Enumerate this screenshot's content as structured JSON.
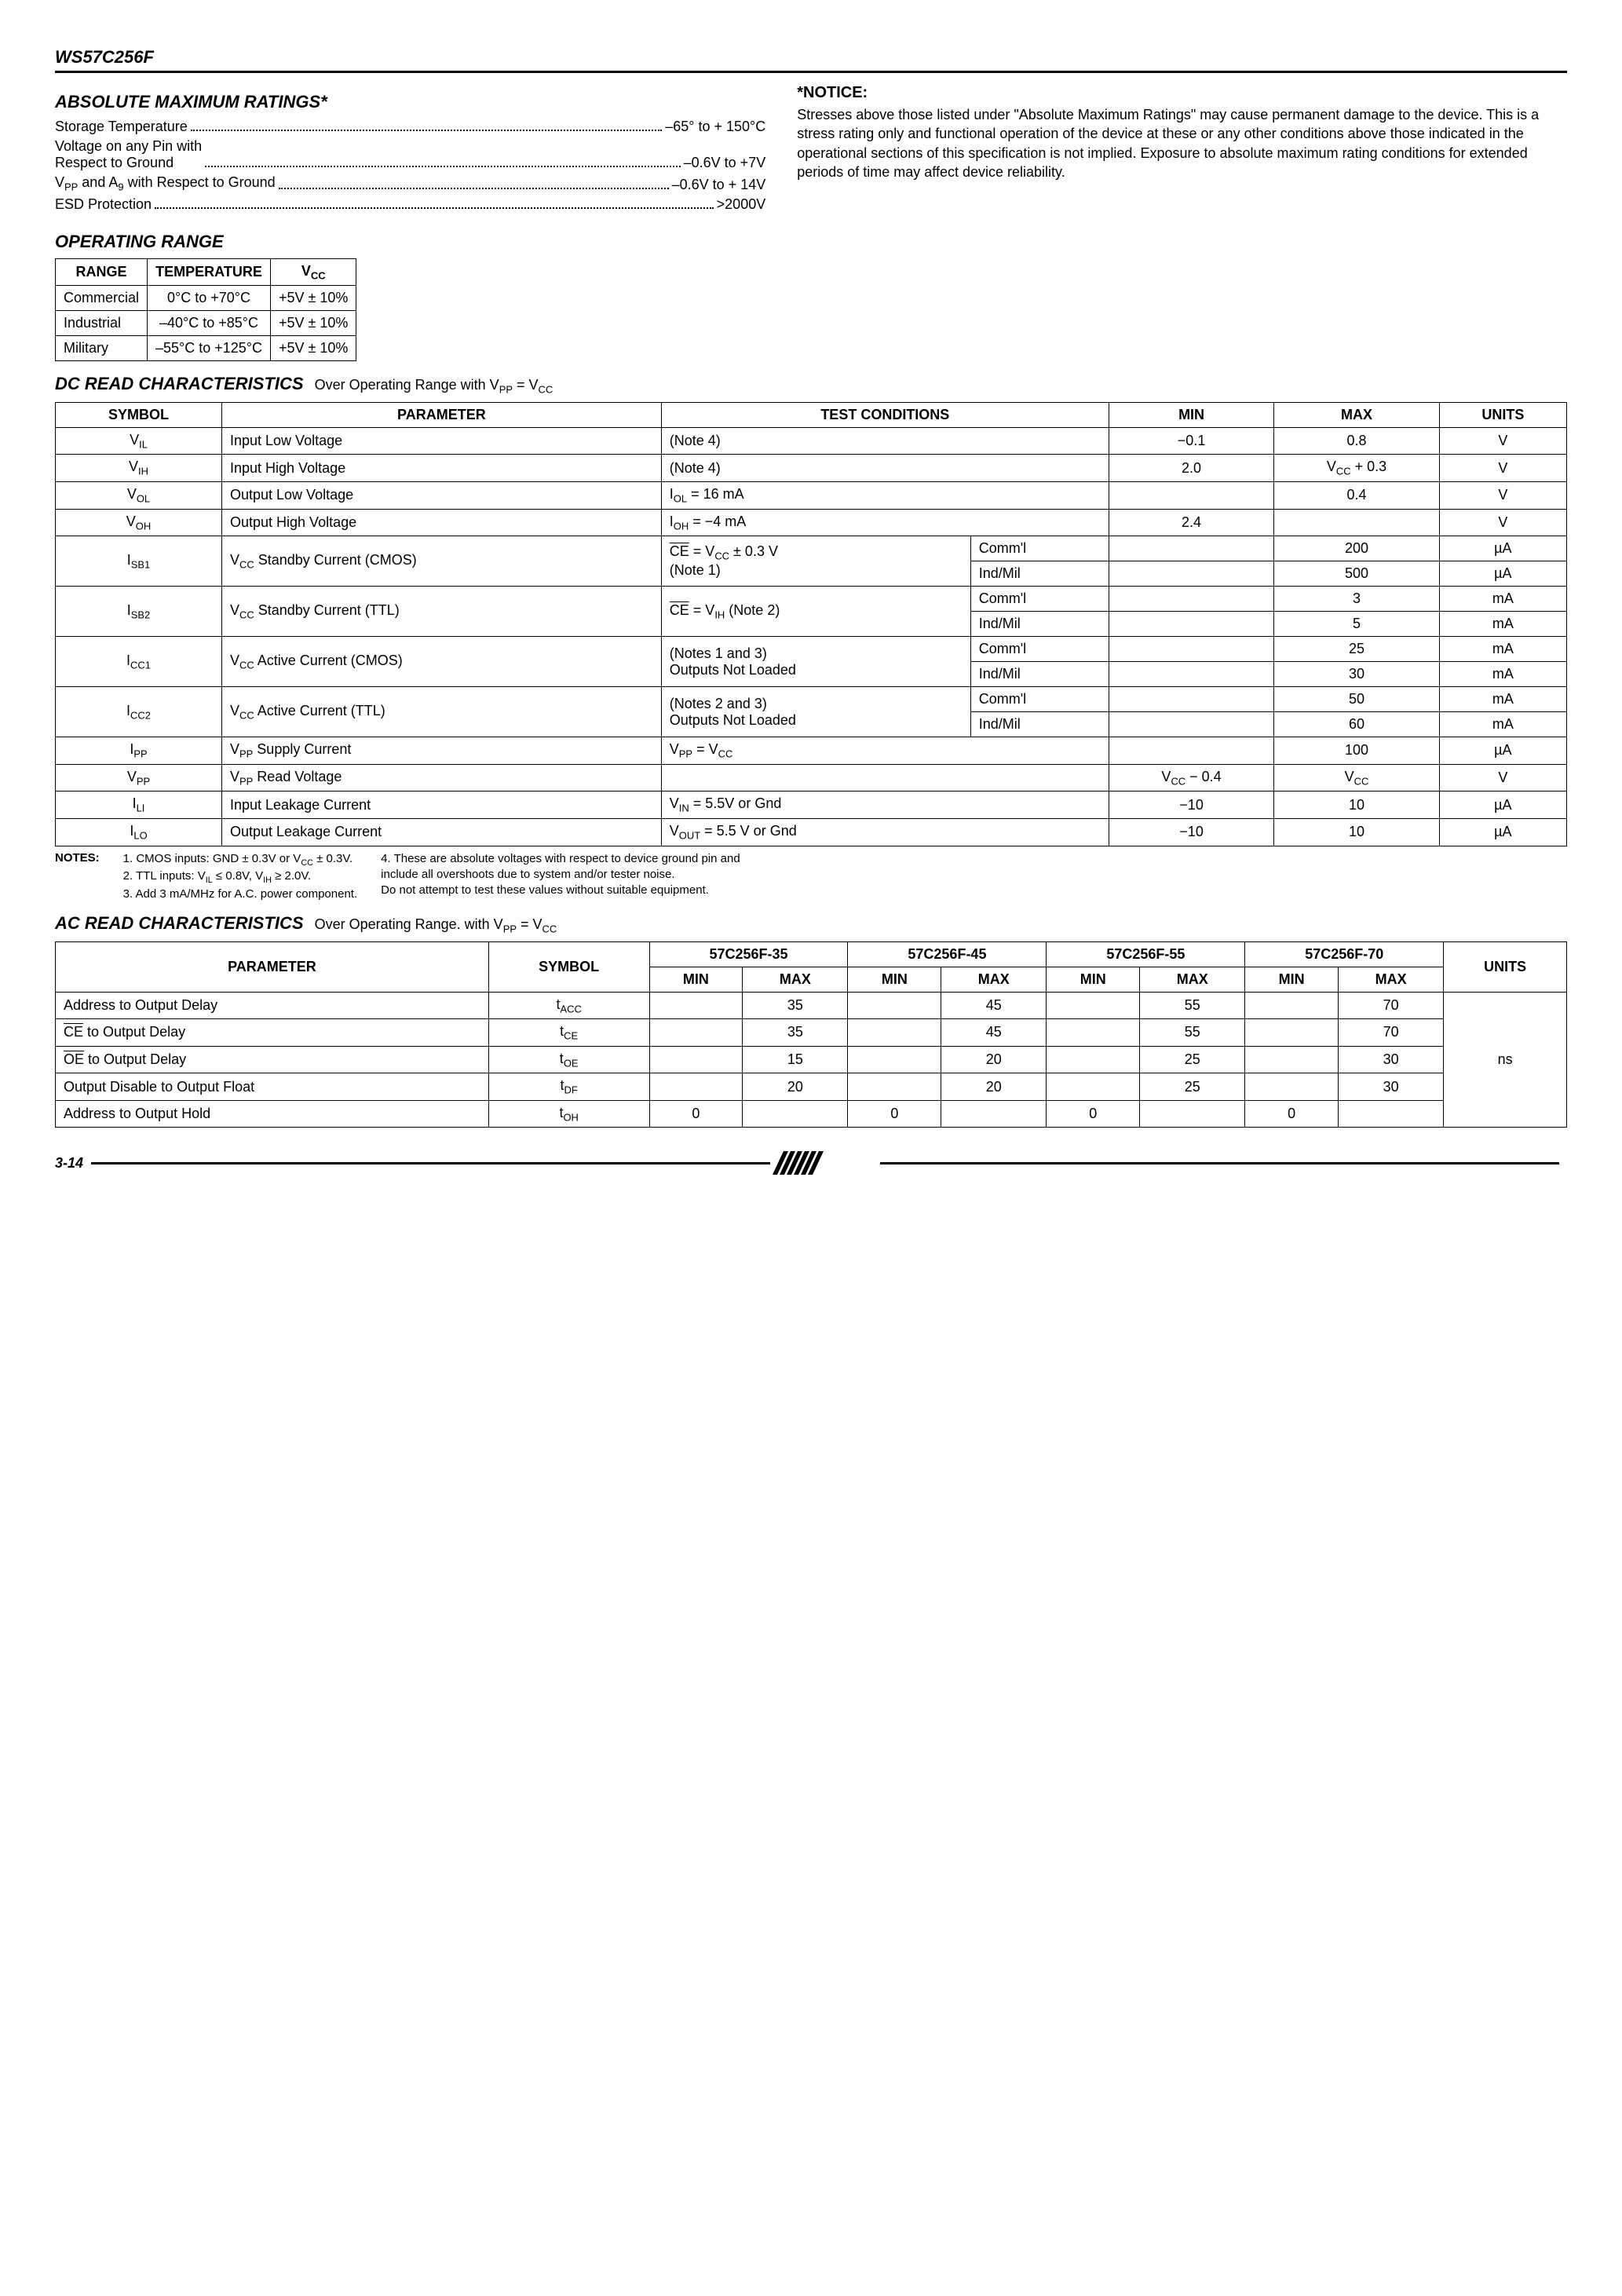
{
  "header": {
    "part_no": "WS57C256F"
  },
  "amr": {
    "title": "ABSOLUTE MAXIMUM RATINGS*",
    "items": [
      {
        "label": "Storage Temperature",
        "value": "–65° to + 150°C"
      },
      {
        "label": "Voltage on any Pin with\nRespect to Ground",
        "value": "–0.6V to +7V"
      },
      {
        "label": "V_PP and A_9 with Respect to Ground",
        "value": "–0.6V to + 14V"
      },
      {
        "label": "ESD Protection",
        "value": ">2000V"
      }
    ]
  },
  "notice": {
    "head": "*NOTICE:",
    "body": "Stresses above those listed under \"Absolute Maximum Ratings\" may cause permanent damage to the device. This is a stress rating only and functional operation of the device at these or any other conditions above those indicated in the operational sections of this specification is not implied. Exposure to absolute maximum rating conditions for extended periods of time may affect device reliability."
  },
  "op_range": {
    "title": "OPERATING RANGE",
    "cols": [
      "RANGE",
      "TEMPERATURE",
      "V_CC"
    ],
    "rows": [
      {
        "range": "Commercial",
        "temp": "0°C to +70°C",
        "vcc": "+5V ± 10%"
      },
      {
        "range": "Industrial",
        "temp": "–40°C to +85°C",
        "vcc": "+5V ± 10%"
      },
      {
        "range": "Military",
        "temp": "–55°C to +125°C",
        "vcc": "+5V ± 10%"
      }
    ]
  },
  "dc": {
    "title": "DC READ CHARACTERISTICS",
    "cond": "Over Operating Range with V_PP = V_CC",
    "cols": [
      "SYMBOL",
      "PARAMETER",
      "TEST CONDITIONS",
      "MIN",
      "MAX",
      "UNITS"
    ],
    "rows": [
      {
        "sym": "V_IL",
        "param": "Input Low Voltage",
        "tc": "(Note 4)",
        "grade": "",
        "min": "−0.1",
        "max": "0.8",
        "units": "V"
      },
      {
        "sym": "V_IH",
        "param": "Input High Voltage",
        "tc": "(Note 4)",
        "grade": "",
        "min": "2.0",
        "max": "V_CC + 0.3",
        "units": "V"
      },
      {
        "sym": "V_OL",
        "param": "Output Low Voltage",
        "tc": "I_OL = 16 mA",
        "grade": "",
        "min": "",
        "max": "0.4",
        "units": "V"
      },
      {
        "sym": "V_OH",
        "param": "Output High Voltage",
        "tc": "I_OH = −4 mA",
        "grade": "",
        "min": "2.4",
        "max": "",
        "units": "V"
      },
      {
        "sym": "I_SB1",
        "param": "V_CC Standby Current (CMOS)",
        "tc": "CE̅ = V_CC ± 0.3 V\n(Note 1)",
        "grade": "Comm'l",
        "min": "",
        "max": "200",
        "units": "µA",
        "span2": true
      },
      {
        "sym": "",
        "param": "",
        "tc": "",
        "grade": "Ind/Mil",
        "min": "",
        "max": "500",
        "units": "µA"
      },
      {
        "sym": "I_SB2",
        "param": "V_CC Standby Current (TTL)",
        "tc": "CE̅ = V_IH (Note 2)",
        "grade": "Comm'l",
        "min": "",
        "max": "3",
        "units": "mA",
        "span2": true
      },
      {
        "sym": "",
        "param": "",
        "tc": "",
        "grade": "Ind/Mil",
        "min": "",
        "max": "5",
        "units": "mA"
      },
      {
        "sym": "I_CC1",
        "param": "V_CC Active Current (CMOS)",
        "tc": "(Notes 1 and 3)\nOutputs Not Loaded",
        "grade": "Comm'l",
        "min": "",
        "max": "25",
        "units": "mA",
        "span2": true
      },
      {
        "sym": "",
        "param": "",
        "tc": "",
        "grade": "Ind/Mil",
        "min": "",
        "max": "30",
        "units": "mA"
      },
      {
        "sym": "I_CC2",
        "param": "V_CC Active Current (TTL)",
        "tc": "(Notes 2 and 3)\nOutputs Not Loaded",
        "grade": "Comm'l",
        "min": "",
        "max": "50",
        "units": "mA",
        "span2": true
      },
      {
        "sym": "",
        "param": "",
        "tc": "",
        "grade": "Ind/Mil",
        "min": "",
        "max": "60",
        "units": "mA"
      },
      {
        "sym": "I_PP",
        "param": "V_PP Supply Current",
        "tc": "V_PP = V_CC",
        "grade": "",
        "min": "",
        "max": "100",
        "units": "µA"
      },
      {
        "sym": "V_PP",
        "param": "V_PP Read Voltage",
        "tc": "",
        "grade": "",
        "min": "V_CC − 0.4",
        "max": "V_CC",
        "units": "V"
      },
      {
        "sym": "I_LI",
        "param": "Input Leakage Current",
        "tc": "V_IN = 5.5V or Gnd",
        "grade": "",
        "min": "−10",
        "max": "10",
        "units": "µA"
      },
      {
        "sym": "I_LO",
        "param": "Output Leakage Current",
        "tc": "V_OUT = 5.5 V or Gnd",
        "grade": "",
        "min": "−10",
        "max": "10",
        "units": "µA"
      }
    ]
  },
  "notes": {
    "label": "NOTES:",
    "left": "1. CMOS inputs: GND ± 0.3V or V_CC ± 0.3V.\n2. TTL inputs: V_IL ≤ 0.8V, V_IH ≥ 2.0V.\n3. Add 3 mA/MHz for A.C. power component.",
    "right": "4. These are absolute voltages with respect to device ground pin and\n    include all overshoots due to system and/or tester noise.\n    Do not attempt to test these values without suitable equipment."
  },
  "ac": {
    "title": "AC READ CHARACTERISTICS",
    "cond": "Over Operating Range. with V_PP = V_CC",
    "parts": [
      "57C256F-35",
      "57C256F-45",
      "57C256F-55",
      "57C256F-70"
    ],
    "cols": [
      "PARAMETER",
      "SYMBOL",
      "MIN",
      "MAX",
      "UNITS"
    ],
    "rows": [
      {
        "param": "Address to Output Delay",
        "sym": "t_ACC",
        "v": [
          [
            "",
            "35"
          ],
          [
            "",
            "45"
          ],
          [
            "",
            "55"
          ],
          [
            "",
            "70"
          ]
        ]
      },
      {
        "param": "CE̅ to Output Delay",
        "sym": "t_CE",
        "v": [
          [
            "",
            "35"
          ],
          [
            "",
            "45"
          ],
          [
            "",
            "55"
          ],
          [
            "",
            "70"
          ]
        ]
      },
      {
        "param": "OE̅ to Output Delay",
        "sym": "t_OE",
        "v": [
          [
            "",
            "15"
          ],
          [
            "",
            "20"
          ],
          [
            "",
            "25"
          ],
          [
            "",
            "30"
          ]
        ]
      },
      {
        "param": "Output Disable to Output Float",
        "sym": "t_DF",
        "v": [
          [
            "",
            "20"
          ],
          [
            "",
            "20"
          ],
          [
            "",
            "25"
          ],
          [
            "",
            "30"
          ]
        ]
      },
      {
        "param": "Address to Output Hold",
        "sym": "t_OH",
        "v": [
          [
            "0",
            ""
          ],
          [
            "0",
            ""
          ],
          [
            "0",
            ""
          ],
          [
            "0",
            ""
          ]
        ]
      }
    ],
    "units": "ns"
  },
  "footer": {
    "page": "3-14"
  }
}
